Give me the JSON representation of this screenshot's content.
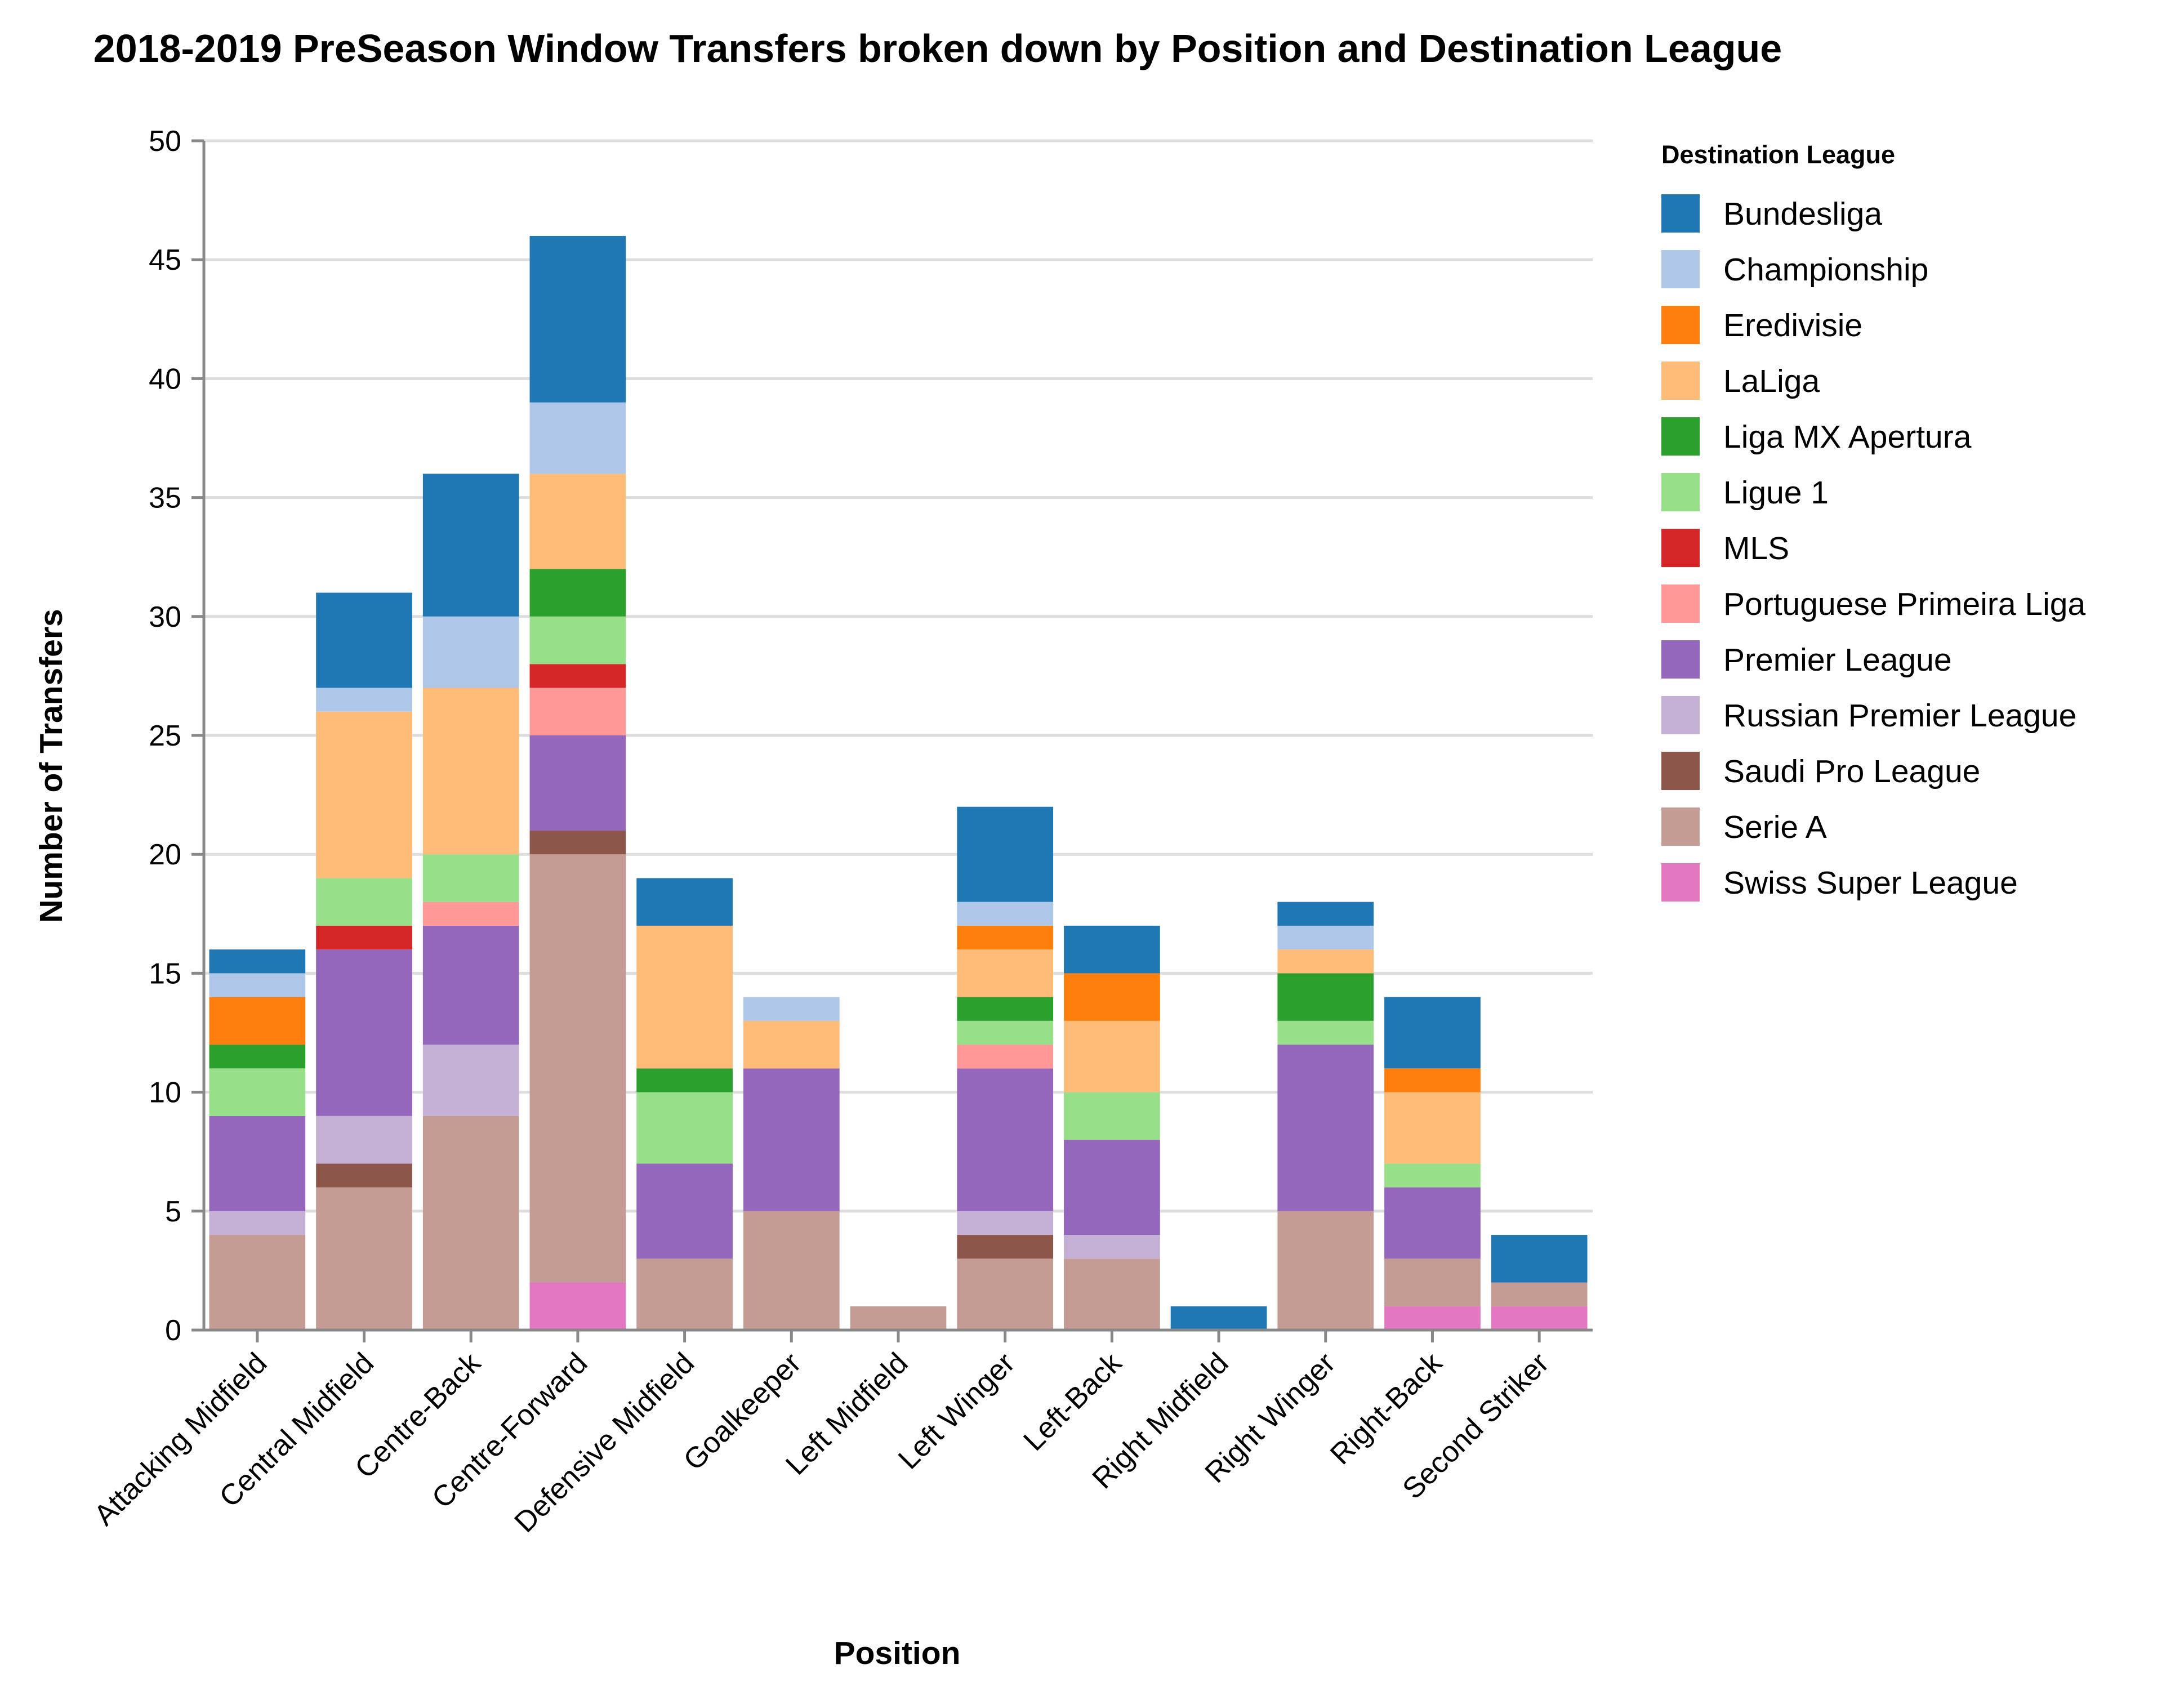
{
  "chart_data": {
    "type": "bar",
    "stacked": true,
    "title": "2018-2019 PreSeason Window Transfers broken down by Position and Destination League",
    "xlabel": "Position",
    "ylabel": "Number of Transfers",
    "ylim": [
      0,
      50
    ],
    "yticks": [
      0,
      5,
      10,
      15,
      20,
      25,
      30,
      35,
      40,
      45,
      50
    ],
    "grid": true,
    "legend_title": "Destination League",
    "legend_position": "right",
    "categories": [
      "Attacking Midfield",
      "Central Midfield",
      "Centre-Back",
      "Centre-Forward",
      "Defensive Midfield",
      "Goalkeeper",
      "Left Midfield",
      "Left Winger",
      "Left-Back",
      "Right Midfield",
      "Right Winger",
      "Right-Back",
      "Second Striker"
    ],
    "series": [
      {
        "name": "Bundesliga",
        "color": "#1f77b4",
        "values": [
          1,
          4,
          6,
          7,
          2,
          0,
          0,
          4,
          2,
          1,
          1,
          3,
          2
        ]
      },
      {
        "name": "Championship",
        "color": "#aec7e8",
        "values": [
          1,
          1,
          3,
          3,
          0,
          1,
          0,
          1,
          0,
          0,
          1,
          0,
          0
        ]
      },
      {
        "name": "Eredivisie",
        "color": "#ff7f0e",
        "values": [
          2,
          0,
          0,
          0,
          0,
          0,
          0,
          1,
          2,
          0,
          0,
          1,
          0
        ]
      },
      {
        "name": "LaLiga",
        "color": "#ffbb78",
        "values": [
          0,
          7,
          7,
          4,
          6,
          2,
          0,
          2,
          3,
          0,
          1,
          3,
          0
        ]
      },
      {
        "name": "Liga MX Apertura",
        "color": "#2ca02c",
        "values": [
          1,
          0,
          0,
          2,
          1,
          0,
          0,
          1,
          0,
          0,
          2,
          0,
          0
        ]
      },
      {
        "name": "Ligue 1",
        "color": "#98df8a",
        "values": [
          2,
          2,
          2,
          2,
          3,
          0,
          0,
          1,
          2,
          0,
          1,
          1,
          0
        ]
      },
      {
        "name": "MLS",
        "color": "#d62728",
        "values": [
          0,
          1,
          0,
          1,
          0,
          0,
          0,
          0,
          0,
          0,
          0,
          0,
          0
        ]
      },
      {
        "name": "Portuguese Primeira Liga",
        "color": "#ff9896",
        "values": [
          0,
          0,
          1,
          2,
          0,
          0,
          0,
          1,
          0,
          0,
          0,
          0,
          0
        ]
      },
      {
        "name": "Premier League",
        "color": "#9467bd",
        "values": [
          4,
          7,
          5,
          4,
          4,
          6,
          0,
          6,
          4,
          0,
          7,
          3,
          0
        ]
      },
      {
        "name": "Russian Premier League",
        "color": "#c5b0d5",
        "values": [
          1,
          2,
          3,
          0,
          0,
          0,
          0,
          1,
          1,
          0,
          0,
          0,
          0
        ]
      },
      {
        "name": "Saudi Pro League",
        "color": "#8c564b",
        "values": [
          0,
          1,
          0,
          1,
          0,
          0,
          0,
          1,
          0,
          0,
          0,
          0,
          0
        ]
      },
      {
        "name": "Serie A",
        "color": "#c49c94",
        "values": [
          4,
          6,
          9,
          18,
          3,
          5,
          1,
          3,
          3,
          0,
          5,
          2,
          1
        ]
      },
      {
        "name": "Swiss Super League",
        "color": "#e377c2",
        "values": [
          0,
          0,
          0,
          2,
          0,
          0,
          0,
          0,
          0,
          0,
          0,
          1,
          1
        ]
      }
    ],
    "stack_order_bottom_to_top": [
      "Swiss Super League",
      "Serie A",
      "Saudi Pro League",
      "Russian Premier League",
      "Premier League",
      "Portuguese Primeira Liga",
      "MLS",
      "Ligue 1",
      "Liga MX Apertura",
      "LaLiga",
      "Eredivisie",
      "Championship",
      "Bundesliga"
    ]
  }
}
